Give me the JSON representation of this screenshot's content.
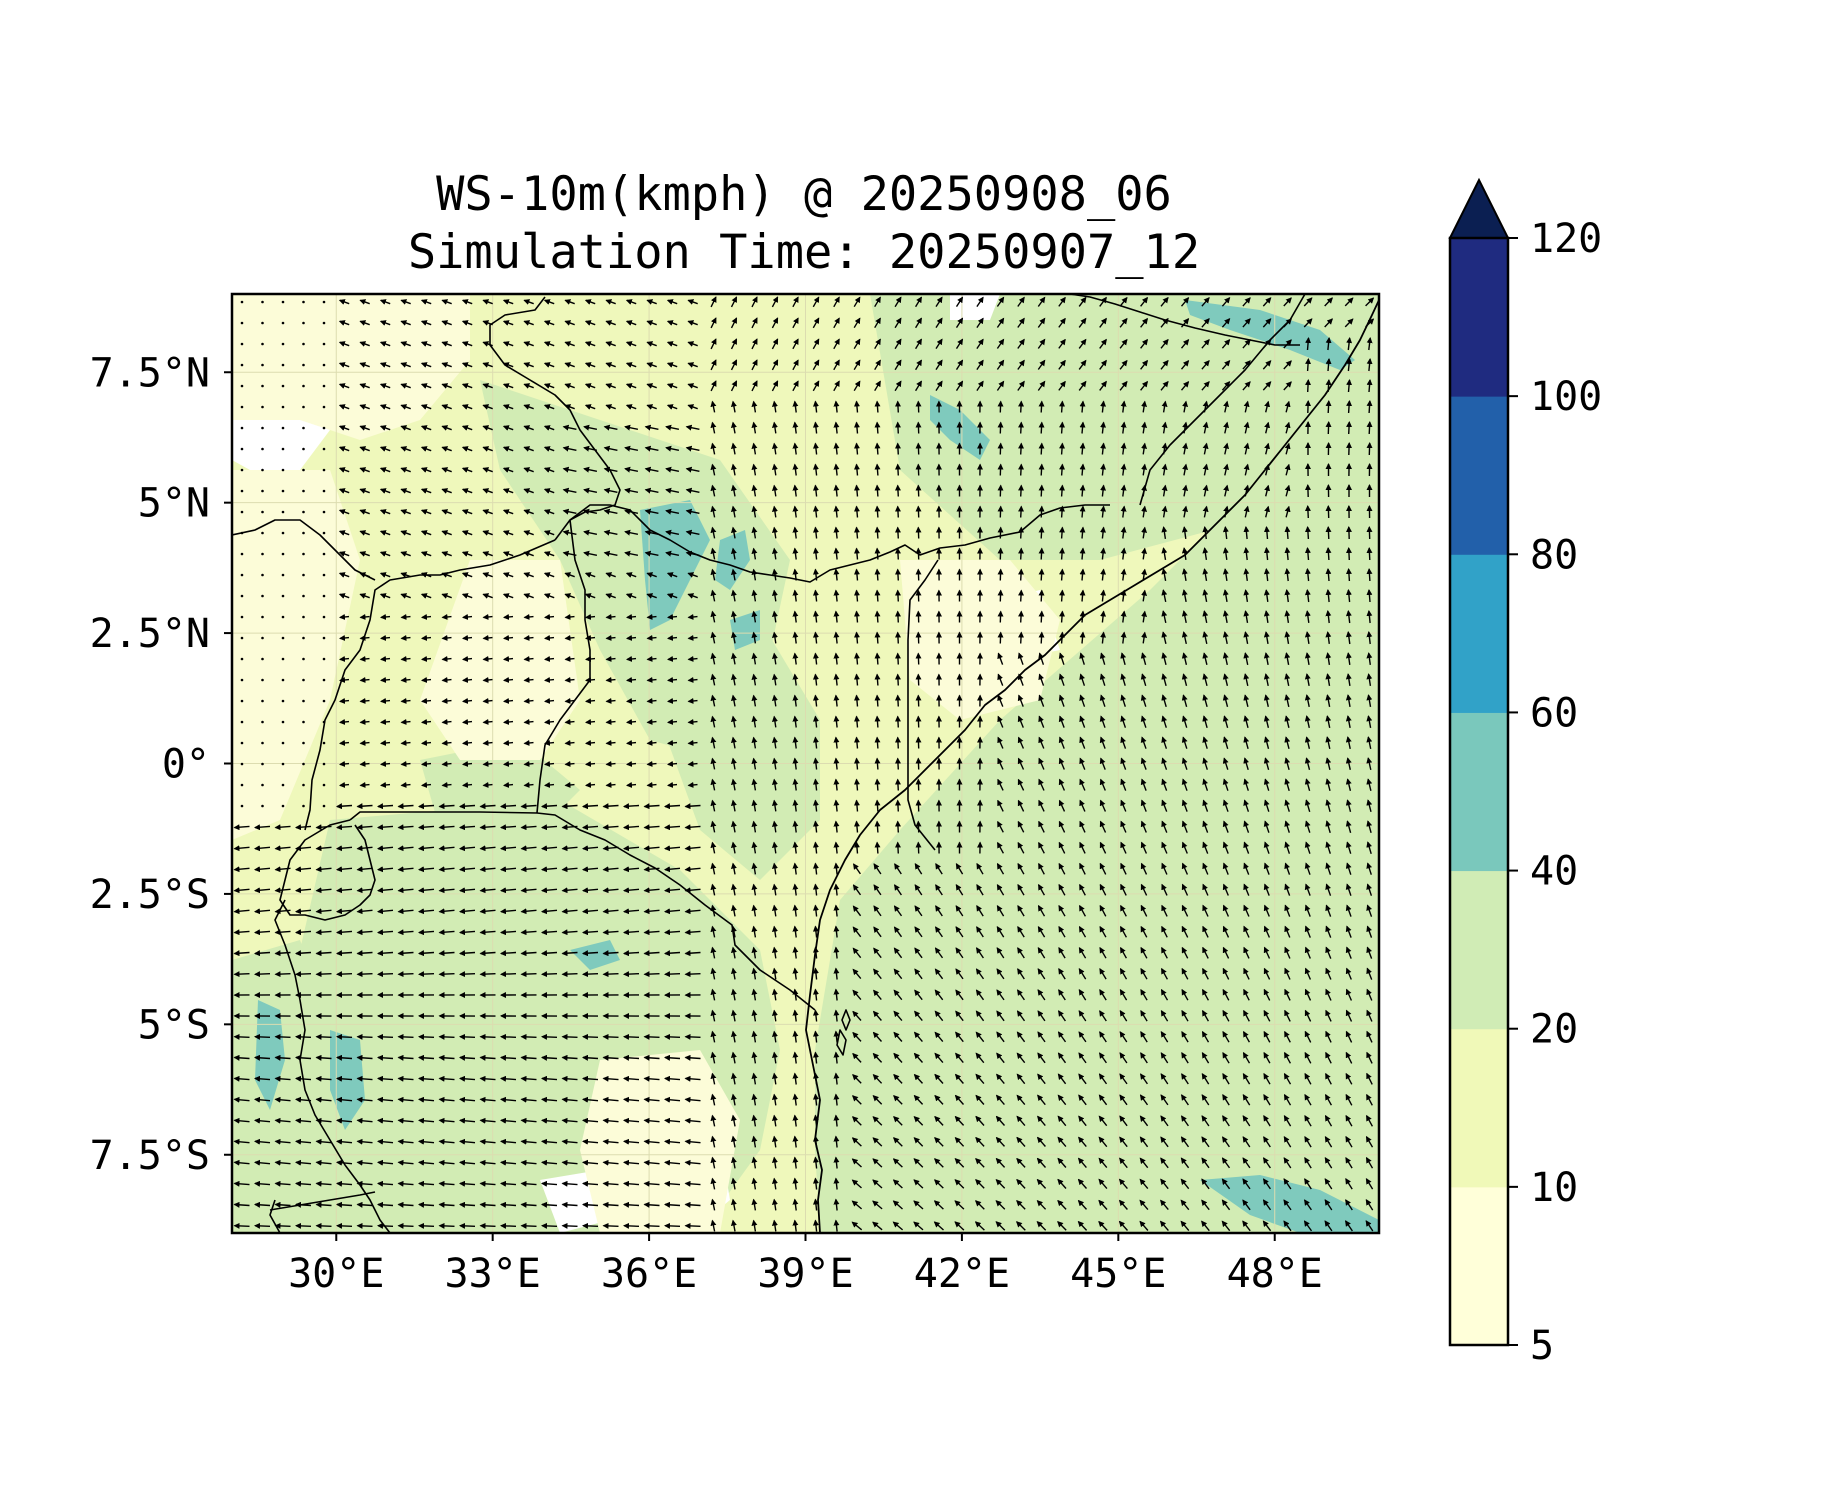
{
  "title": {
    "line1": "WS-10m(kmph) @ 20250908_06",
    "line2": "Simulation Time: 20250907_12"
  },
  "map": {
    "lon_range": [
      28,
      50
    ],
    "lat_range": [
      -9,
      9
    ],
    "x_ticks": [
      {
        "value": 30,
        "label": "30°E"
      },
      {
        "value": 33,
        "label": "33°E"
      },
      {
        "value": 36,
        "label": "36°E"
      },
      {
        "value": 39,
        "label": "39°E"
      },
      {
        "value": 42,
        "label": "42°E"
      },
      {
        "value": 45,
        "label": "45°E"
      },
      {
        "value": 48,
        "label": "48°E"
      }
    ],
    "y_ticks": [
      {
        "value": 7.5,
        "label": "7.5°N"
      },
      {
        "value": 5,
        "label": "5°N"
      },
      {
        "value": 2.5,
        "label": "2.5°N"
      },
      {
        "value": 0,
        "label": "0°"
      },
      {
        "value": -2.5,
        "label": "2.5°S"
      },
      {
        "value": -5,
        "label": "5°S"
      },
      {
        "value": -7.5,
        "label": "7.5°S"
      }
    ]
  },
  "colorbar": {
    "levels": [
      5,
      10,
      20,
      40,
      60,
      80,
      100,
      120
    ],
    "labels": [
      "5",
      "10",
      "20",
      "40",
      "60",
      "80",
      "100",
      "120"
    ],
    "colors": [
      "#ffffd9",
      "#f0f9b8",
      "#d0ecb5",
      "#7ac8bc",
      "#31a2c8",
      "#2260aa",
      "#1f2b80"
    ],
    "extend_color": "#0b1f52"
  },
  "fill_colors": {
    "calm": "#ffffff",
    "very_low": "#fcfcd8",
    "low": "#eff8bb",
    "mid": "#d2ecb4",
    "high": "#7fcabd"
  }
}
